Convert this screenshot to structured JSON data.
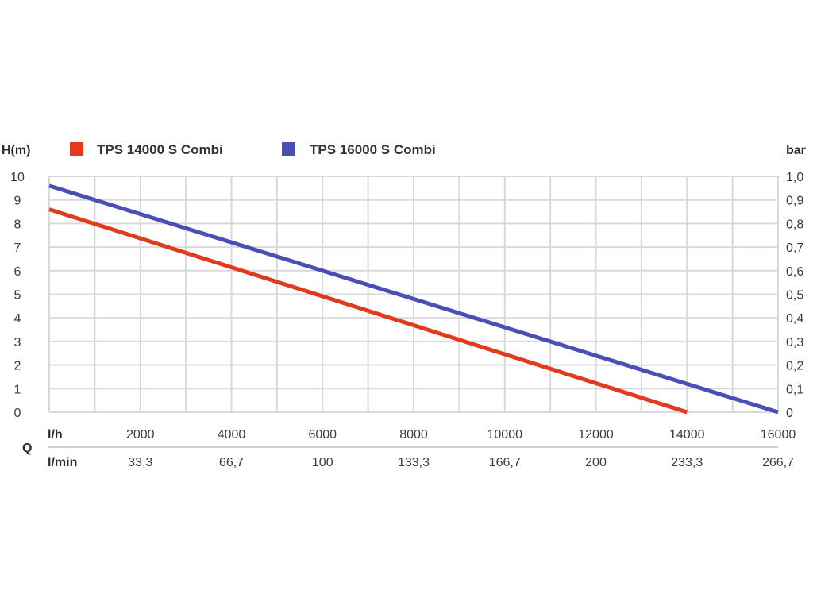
{
  "chart_data": {
    "type": "line",
    "y_left_label": "H(m)",
    "y_right_label": "bar",
    "x_axis_caption": "Q",
    "x_row1_unit": "l/h",
    "x_row2_unit": "l/min",
    "y_ticks_left": [
      "0",
      "1",
      "2",
      "3",
      "4",
      "5",
      "6",
      "7",
      "8",
      "9",
      "10"
    ],
    "y_ticks_right": [
      "0",
      "0,1",
      "0,2",
      "0,3",
      "0,4",
      "0,5",
      "0,6",
      "0,7",
      "0,8",
      "0,9",
      "1,0"
    ],
    "x_ticks_lh": [
      "2000",
      "4000",
      "6000",
      "8000",
      "10000",
      "12000",
      "14000",
      "16000"
    ],
    "x_ticks_lmin": [
      "33,3",
      "66,7",
      "100",
      "133,3",
      "166,7",
      "200",
      "233,3",
      "266,7"
    ],
    "xlim": [
      0,
      16000
    ],
    "ylim": [
      0,
      10
    ],
    "grid": true,
    "legend_position": "top",
    "series": [
      {
        "name": "TPS 14000 S Combi",
        "color": "#e23a1e",
        "x": [
          0,
          14000
        ],
        "y": [
          8.6,
          0.0
        ]
      },
      {
        "name": "TPS 16000 S Combi",
        "color": "#4a4fb5",
        "x": [
          0,
          16000
        ],
        "y": [
          9.6,
          0.0
        ]
      }
    ]
  }
}
